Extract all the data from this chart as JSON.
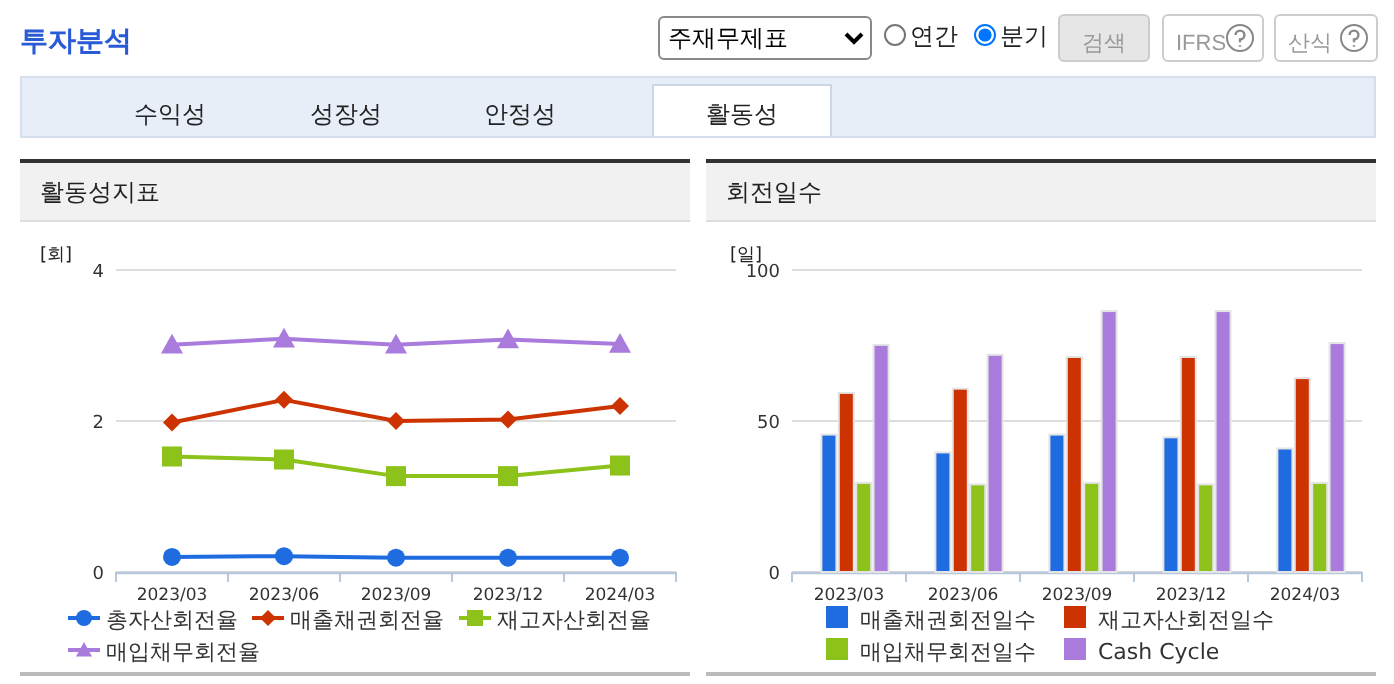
{
  "chart_data": [
    {
      "type": "other",
      "title": "투자분석",
      "annotations": [
        "주재무제표",
        "연간",
        "분기",
        "검색",
        "IFRS",
        "산식",
        "수익성",
        "성장성",
        "안정성",
        "활동성"
      ]
    },
    {
      "type": "line",
      "title": "활동성지표",
      "ylabel": "[회]",
      "categories": [
        "2023/03",
        "2023/06",
        "2023/09",
        "2023/12",
        "2024/03"
      ],
      "ylim": [
        0,
        4
      ],
      "yticks": [
        0,
        2,
        4
      ],
      "grid": "y",
      "legend": "bottom",
      "series": [
        {
          "name": "총자산회전율",
          "color": "#1f6ce0",
          "marker": "circle",
          "values": [
            0.2,
            0.21,
            0.19,
            0.19,
            0.19
          ]
        },
        {
          "name": "매출채권회전율",
          "color": "#cc3300",
          "marker": "diamond",
          "values": [
            1.98,
            2.28,
            2.0,
            2.02,
            2.2
          ]
        },
        {
          "name": "재고자산회전율",
          "color": "#8cc21a",
          "marker": "square",
          "values": [
            1.53,
            1.49,
            1.27,
            1.27,
            1.41
          ]
        },
        {
          "name": "매입채무회전율",
          "color": "#a97bdc",
          "marker": "triangle",
          "values": [
            3.01,
            3.09,
            3.01,
            3.08,
            3.02
          ]
        }
      ]
    },
    {
      "type": "bar",
      "title": "회전일수",
      "ylabel": "[일]",
      "categories": [
        "2023/03",
        "2023/06",
        "2023/09",
        "2023/12",
        "2024/03"
      ],
      "ylim": [
        0,
        100
      ],
      "yticks": [
        0,
        50,
        100
      ],
      "grid": "y",
      "legend": "bottom",
      "series": [
        {
          "name": "매출채권회전일수",
          "color": "#1f6ce0",
          "values": [
            45.5,
            39.6,
            45.5,
            44.6,
            40.9
          ]
        },
        {
          "name": "재고자산회전일수",
          "color": "#cc3300",
          "values": [
            59.3,
            60.7,
            71.2,
            71.2,
            64.2
          ]
        },
        {
          "name": "매입채무회전일수",
          "color": "#8cc21a",
          "values": [
            29.5,
            29.0,
            29.5,
            29.0,
            29.5
          ]
        },
        {
          "name": "Cash Cycle",
          "color": "#a97bdc",
          "values": [
            75.2,
            71.9,
            86.4,
            86.4,
            75.8
          ]
        }
      ]
    }
  ]
}
